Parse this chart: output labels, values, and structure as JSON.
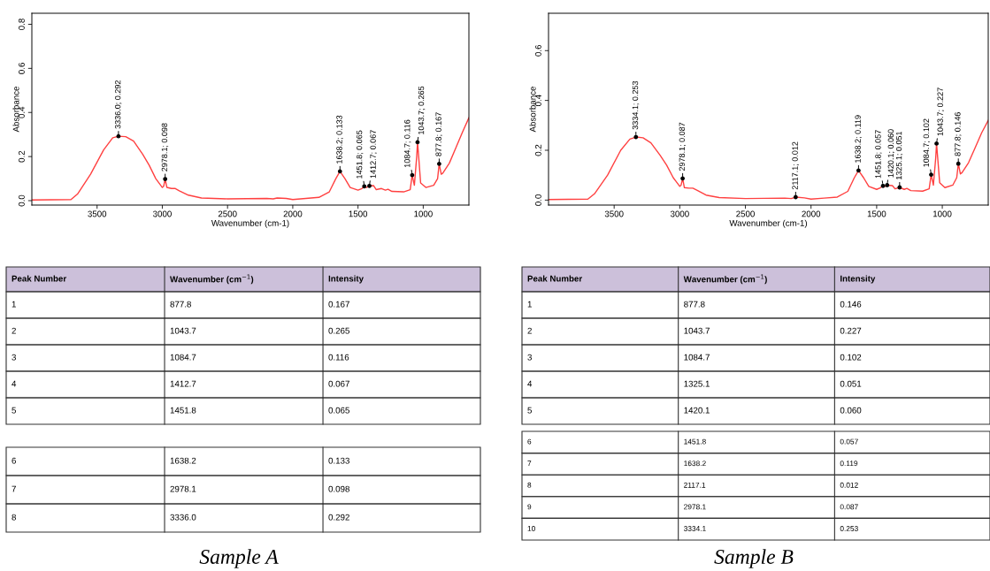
{
  "chart_data": [
    {
      "type": "line",
      "title": "Sample A",
      "xlabel": "Wavenumber (cm-1)",
      "ylabel": "Absorbance",
      "xlim": [
        4000,
        650
      ],
      "xticks": [
        3500,
        3000,
        2500,
        2000,
        1500,
        1000
      ],
      "ylim": [
        -0.02,
        0.85
      ],
      "yticks": [
        {
          "value": 0,
          "label": "0.0"
        },
        0.2,
        0.4,
        0.6,
        0.8
      ],
      "grid": false,
      "annotations": [
        "Peak Number",
        "Wavenumber (cm$^{−1}$)",
        "Intensity",
        "1",
        "877.8",
        "0.167",
        "2",
        "1043.7",
        "0.265",
        "3",
        "1084.7",
        "0.116",
        "4",
        "1412.7",
        "0.067",
        "5",
        "1451.8",
        "0.065",
        "6",
        "1638.2",
        "0.133",
        "7",
        "2978.1",
        "0.098",
        "8",
        "3336.0",
        "0.292"
      ],
      "series": [
        {
          "color": "#ff4040",
          "x": [
            4000,
            3700,
            3650,
            3550,
            3450,
            3380,
            3336,
            3280,
            3220,
            3150,
            3100,
            3050,
            3000,
            2990,
            2978.1,
            2965,
            2930,
            2900,
            2870,
            2800,
            2700,
            2500,
            2200,
            2150,
            2120,
            2050,
            2000,
            1900,
            1800,
            1720,
            1670,
            1638.2,
            1600,
            1560,
            1500,
            1470,
            1451.8,
            1435,
            1412.7,
            1380,
            1360,
            1320,
            1290,
            1270,
            1240,
            1150,
            1100,
            1084.7,
            1068,
            1050,
            1043.7,
            1035,
            1020,
            980,
            920,
            890,
            877.8,
            862,
            850,
            800,
            750,
            700,
            650
          ],
          "values": [
            0.003,
            0.005,
            0.03,
            0.12,
            0.23,
            0.285,
            0.292,
            0.29,
            0.27,
            0.21,
            0.16,
            0.1,
            0.06,
            0.065,
            0.098,
            0.06,
            0.055,
            0.055,
            0.045,
            0.025,
            0.012,
            0.008,
            0.01,
            0.008,
            0.012,
            0.01,
            0.005,
            0.01,
            0.015,
            0.04,
            0.1,
            0.133,
            0.1,
            0.06,
            0.048,
            0.055,
            0.065,
            0.06,
            0.067,
            0.068,
            0.05,
            0.055,
            0.048,
            0.052,
            0.042,
            0.04,
            0.05,
            0.116,
            0.07,
            0.2,
            0.265,
            0.2,
            0.08,
            0.06,
            0.07,
            0.1,
            0.167,
            0.12,
            0.125,
            0.17,
            0.24,
            0.31,
            0.376
          ]
        },
        {
          "type": "scatter",
          "color": "#000000",
          "marker": "circle",
          "x": [
            877.8,
            1043.7,
            1084.7,
            1412.7,
            1451.8,
            1638.2,
            2978.1,
            3336.0
          ],
          "values": [
            0.167,
            0.265,
            0.116,
            0.067,
            0.065,
            0.133,
            0.098,
            0.292
          ],
          "value_labels": [
            "877.8; 0.167",
            "1043.7; 0.265",
            "1084.7; 0.116",
            "1412.7; 0.067",
            "1451.8; 0.065",
            "1638.2; 0.133",
            "2978.1; 0.098",
            "3336.0; 0.292"
          ]
        }
      ]
    },
    {
      "type": "line",
      "title": "Sample B",
      "xlabel": "Wavenumber (cm-1)",
      "ylabel": "Absorbance",
      "xlim": [
        4000,
        650
      ],
      "xticks": [
        3500,
        3000,
        2500,
        2000,
        1500,
        1000
      ],
      "ylim": [
        -0.02,
        0.75
      ],
      "yticks": [
        {
          "value": 0,
          "label": "0.0"
        },
        0.2,
        0.4,
        0.6
      ],
      "grid": false,
      "annotations": [
        "Peak Number",
        "Wavenumber (cm$^{−1}$)",
        "Intensity",
        "1",
        "877.8",
        "0.146",
        "2",
        "1043.7",
        "0.227",
        "3",
        "1084.7",
        "0.102",
        "4",
        "1325.1",
        "0.051",
        "5",
        "1420.1",
        "0.060",
        "6",
        "1451.8",
        "0.057",
        "7",
        "1638.2",
        "0.119",
        "8",
        "2117.1",
        "0.012",
        "9",
        "2978.1",
        "0.087",
        "10",
        "3334.1",
        "0.253"
      ],
      "series": [
        {
          "color": "#ff4040",
          "x": [
            4000,
            3700,
            3650,
            3550,
            3450,
            3380,
            3334.1,
            3280,
            3220,
            3150,
            3100,
            3050,
            3000,
            2990,
            2978.1,
            2965,
            2930,
            2900,
            2870,
            2800,
            2700,
            2500,
            2200,
            2150,
            2117.1,
            2050,
            2000,
            1900,
            1800,
            1720,
            1670,
            1638.2,
            1600,
            1560,
            1500,
            1470,
            1451.8,
            1435,
            1420.1,
            1380,
            1360,
            1325.1,
            1290,
            1270,
            1240,
            1150,
            1100,
            1084.7,
            1068,
            1050,
            1043.7,
            1035,
            1020,
            980,
            920,
            890,
            877.8,
            862,
            850,
            800,
            750,
            700,
            650
          ],
          "values": [
            0.002,
            0.004,
            0.025,
            0.1,
            0.2,
            0.245,
            0.253,
            0.25,
            0.23,
            0.18,
            0.14,
            0.09,
            0.055,
            0.06,
            0.087,
            0.05,
            0.048,
            0.048,
            0.04,
            0.02,
            0.01,
            0.006,
            0.008,
            0.006,
            0.012,
            0.009,
            0.004,
            0.008,
            0.012,
            0.035,
            0.09,
            0.119,
            0.09,
            0.055,
            0.043,
            0.05,
            0.057,
            0.055,
            0.06,
            0.058,
            0.045,
            0.051,
            0.043,
            0.047,
            0.038,
            0.036,
            0.045,
            0.102,
            0.06,
            0.17,
            0.227,
            0.17,
            0.07,
            0.05,
            0.06,
            0.09,
            0.146,
            0.105,
            0.11,
            0.15,
            0.21,
            0.27,
            0.32
          ]
        },
        {
          "type": "scatter",
          "color": "#000000",
          "marker": "circle",
          "x": [
            877.8,
            1043.7,
            1084.7,
            1325.1,
            1420.1,
            1451.8,
            1638.2,
            2117.1,
            2978.1,
            3334.1
          ],
          "values": [
            0.146,
            0.227,
            0.102,
            0.051,
            0.06,
            0.057,
            0.119,
            0.012,
            0.087,
            0.253
          ],
          "value_labels": [
            "877.8; 0.146",
            "1043.7; 0.227",
            "1084.7; 0.102",
            "1325.1; 0.051",
            "1420.1; 0.060",
            "1451.8; 0.057",
            "1638.2; 0.119",
            "2117.1; 0.012",
            "2978.1; 0.087",
            "3334.1; 0.253"
          ]
        }
      ]
    }
  ]
}
